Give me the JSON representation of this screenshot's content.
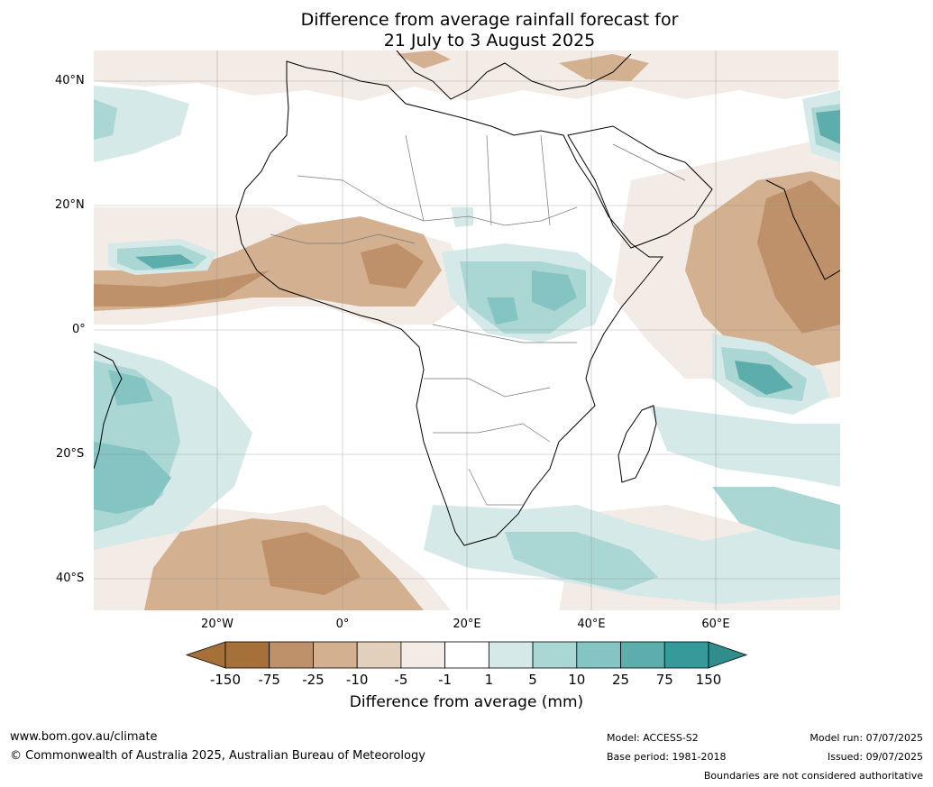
{
  "title_line1": "Difference from average rainfall forecast for",
  "title_line2": "21 July to 3 August 2025",
  "lat_labels": [
    "40°N",
    "20°N",
    "0°",
    "20°S",
    "40°S"
  ],
  "lon_labels": [
    "20°W",
    "0°",
    "20°E",
    "40°E",
    "60°E"
  ],
  "colorbar": {
    "title": "Difference from average (mm)",
    "ticks": [
      "-150",
      "-75",
      "-25",
      "-10",
      "-5",
      "-1",
      "1",
      "5",
      "10",
      "25",
      "75",
      "150"
    ],
    "colors": [
      "#a6703a",
      "#bf916a",
      "#d3b190",
      "#e2cfbc",
      "#f3ebe5",
      "#ffffff",
      "#d5e9e8",
      "#aad6d4",
      "#84c4c2",
      "#5cadab",
      "#36999a",
      "#2f8d8b"
    ]
  },
  "footer": {
    "website": "www.bom.gov.au/climate",
    "copyright": "© Commonwealth of Australia 2025, Australian Bureau of Meteorology",
    "model": "Model: ACCESS-S2",
    "base_period": "Base period: 1981-2018",
    "model_run": "Model run: 07/07/2025",
    "issued": "Issued: 09/07/2025",
    "disclaimer": "Boundaries are not considered authoritative"
  }
}
